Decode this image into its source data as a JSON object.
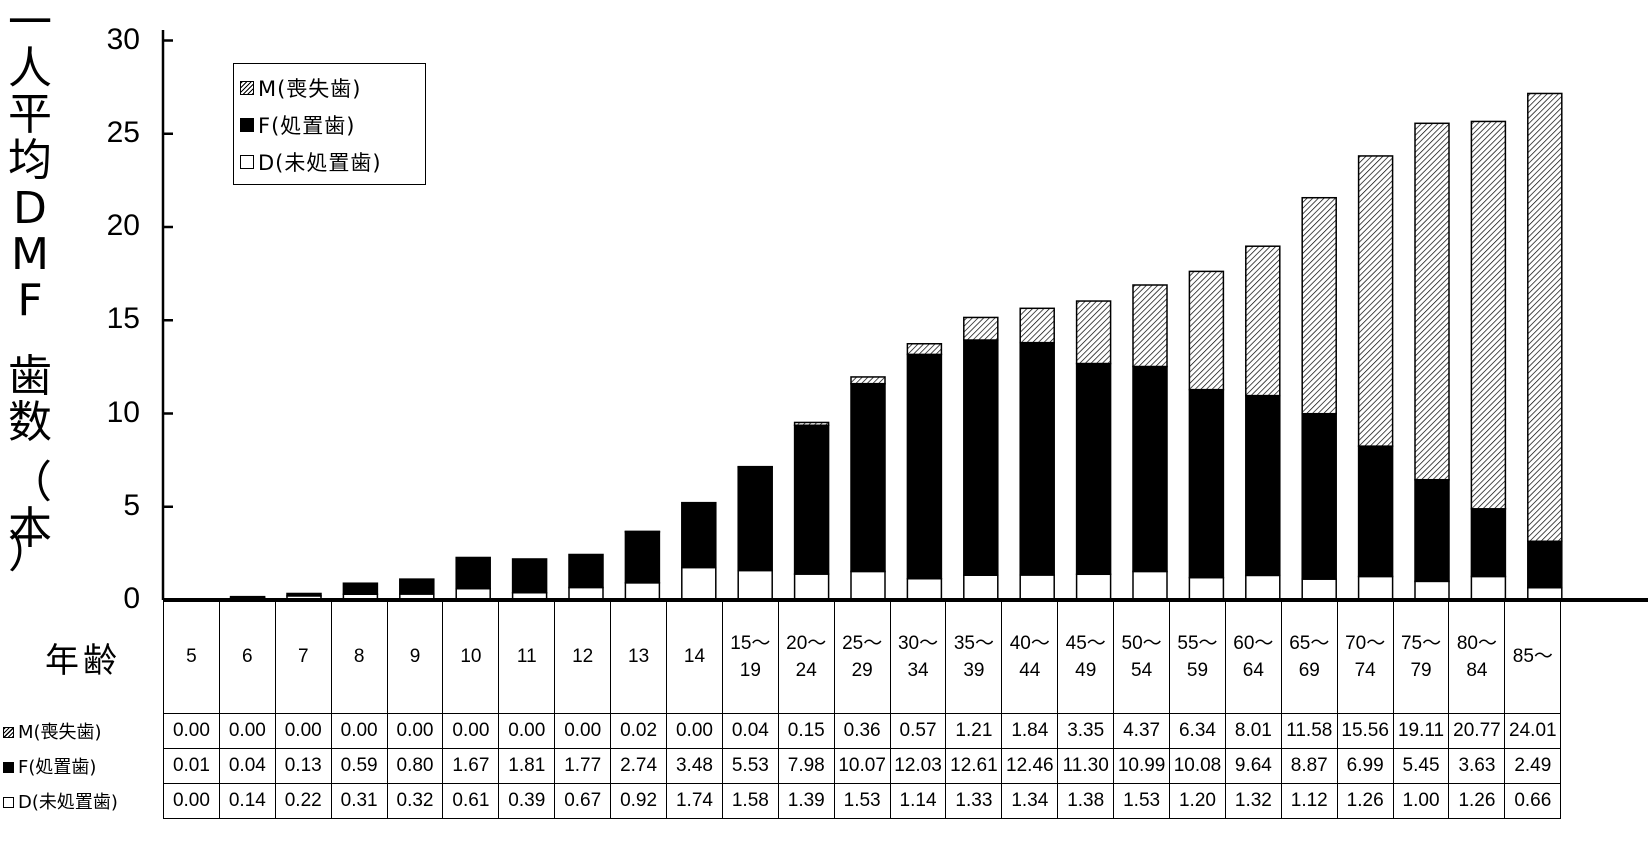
{
  "y_axis_label_chars": [
    "一",
    "人",
    "平",
    "均",
    "D",
    "M",
    "F",
    "歯",
    "数",
    "（",
    "本",
    "）"
  ],
  "x_axis_label": "年齢",
  "legend": [
    {
      "key": "M",
      "label": "M(喪失歯)",
      "pattern": "hatched"
    },
    {
      "key": "F",
      "label": "F(処置歯)",
      "pattern": "black"
    },
    {
      "key": "D",
      "label": "D(未処置歯)",
      "pattern": "white"
    }
  ],
  "row_labels": {
    "M": "M(喪失歯)",
    "F": "F(処置歯)",
    "D": "D(未処置歯)"
  },
  "chart_data": {
    "type": "bar",
    "stacked": true,
    "ylim": [
      0,
      30
    ],
    "yticks": [
      0,
      5,
      10,
      15,
      20,
      25,
      30
    ],
    "grid": false,
    "legend_position": "top-left",
    "categories": [
      "5",
      "6",
      "7",
      "8",
      "9",
      "10",
      "11",
      "12",
      "13",
      "14",
      "15〜\n19",
      "20〜\n24",
      "25〜\n29",
      "30〜\n34",
      "35〜\n39",
      "40〜\n44",
      "45〜\n49",
      "50〜\n54",
      "55〜\n59",
      "60〜\n64",
      "65〜\n69",
      "70〜\n74",
      "75〜\n79",
      "80〜\n84",
      "85〜"
    ],
    "series": [
      {
        "name": "D(未処置歯)",
        "key": "D",
        "values": [
          "0.00",
          "0.14",
          "0.22",
          "0.31",
          "0.32",
          "0.61",
          "0.39",
          "0.67",
          "0.92",
          "1.74",
          "1.58",
          "1.39",
          "1.53",
          "1.14",
          "1.33",
          "1.34",
          "1.38",
          "1.53",
          "1.20",
          "1.32",
          "1.12",
          "1.26",
          "1.00",
          "1.26",
          "0.66"
        ]
      },
      {
        "name": "F(処置歯)",
        "key": "F",
        "values": [
          "0.01",
          "0.04",
          "0.13",
          "0.59",
          "0.80",
          "1.67",
          "1.81",
          "1.77",
          "2.74",
          "3.48",
          "5.53",
          "7.98",
          "10.07",
          "12.03",
          "12.61",
          "12.46",
          "11.30",
          "10.99",
          "10.08",
          "9.64",
          "8.87",
          "6.99",
          "5.45",
          "3.63",
          "2.49"
        ]
      },
      {
        "name": "M(喪失歯)",
        "key": "M",
        "values": [
          "0.00",
          "0.00",
          "0.00",
          "0.00",
          "0.00",
          "0.00",
          "0.00",
          "0.00",
          "0.02",
          "0.00",
          "0.04",
          "0.15",
          "0.36",
          "0.57",
          "1.21",
          "1.84",
          "3.35",
          "4.37",
          "6.34",
          "8.01",
          "11.58",
          "15.56",
          "19.11",
          "20.77",
          "24.01"
        ]
      }
    ]
  }
}
